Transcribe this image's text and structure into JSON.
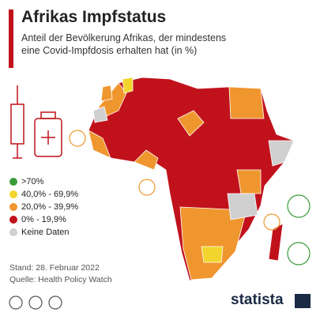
{
  "header": {
    "title": "Afrikas Impfstatus",
    "subtitle_lines": [
      "Anteil der Bevölkerung Afrikas, der mindestens",
      "eine Covid-Impfdosis erhalten hat (in %)"
    ]
  },
  "legend": [
    {
      "label": ">70%",
      "color": "#3a9b3a"
    },
    {
      "label": "40,0% - 69,9%",
      "color": "#f2d52c"
    },
    {
      "label": "20,0% - 39,9%",
      "color": "#f0962e"
    },
    {
      "label": "0% - 19,9%",
      "color": "#c1121c"
    },
    {
      "label": "Keine Daten",
      "color": "#d0d0d0"
    }
  ],
  "footer": {
    "date": "Stand: 28. Februar 2022",
    "source": "Quelle: Health Policy Watch",
    "brand": "statista"
  }
}
